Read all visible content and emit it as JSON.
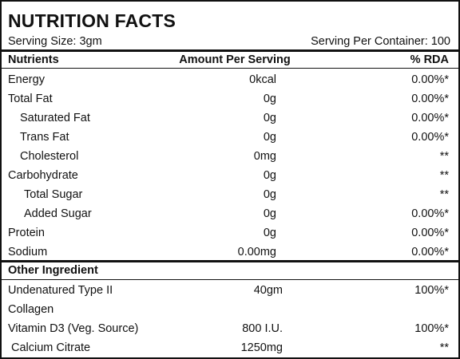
{
  "header": {
    "title": "NUTRITION FACTS",
    "serving_size": "Serving Size: 3gm",
    "servings_per_container": "Serving Per Container: 100"
  },
  "nutrients": {
    "columns": [
      "Nutrients",
      "Amount Per Serving",
      "% RDA"
    ],
    "rows": [
      {
        "name": "Energy",
        "amount": "0kcal",
        "rda": "0.00%*"
      },
      {
        "name": "Total Fat",
        "amount": "0g",
        "rda": "0.00%*"
      },
      {
        "name": "Saturated Fat",
        "amount": "0g",
        "rda": "0.00%*"
      },
      {
        "name": "Trans Fat",
        "amount": "0g",
        "rda": "0.00%*"
      },
      {
        "name": "Cholesterol",
        "amount": "0mg",
        "rda": "**"
      },
      {
        "name": "Carbohydrate",
        "amount": "0g",
        "rda": "**"
      },
      {
        "name": "Total Sugar",
        "amount": "0g",
        "rda": "**"
      },
      {
        "name": "Added Sugar",
        "amount": "0g",
        "rda": "0.00%*"
      },
      {
        "name": "Protein",
        "amount": "0g",
        "rda": "0.00%*"
      },
      {
        "name": "Sodium",
        "amount": "0.00mg",
        "rda": "0.00%*"
      }
    ]
  },
  "other": {
    "heading": "Other Ingredient",
    "rows": [
      {
        "name": [
          "Undenatured Type II",
          "Collagen"
        ],
        "amount": "40gm",
        "rda": "100%*"
      },
      {
        "name": [
          "Vitamin D3 (Veg. Source)"
        ],
        "amount": "800 I.U.",
        "rda": "100%*"
      },
      {
        "name": [
          "Calcium Citrate"
        ],
        "amount": "1250mg",
        "rda": "**"
      }
    ]
  }
}
